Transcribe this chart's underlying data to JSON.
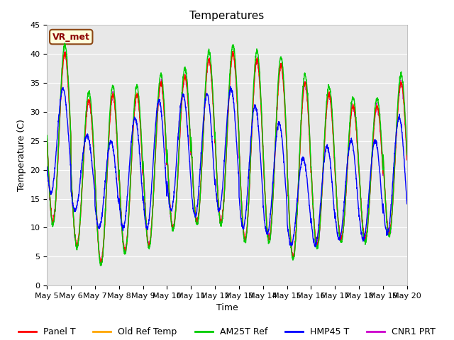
{
  "title": "Temperatures",
  "xlabel": "Time",
  "ylabel": "Temperature (C)",
  "ylim": [
    0,
    45
  ],
  "n_days": 15,
  "background_color": "#e8e8e8",
  "plot_bg_color": "#e8e8e8",
  "grid_color": "white",
  "annotation_text": "VR_met",
  "annotation_bg": "#ffffdd",
  "annotation_border": "#8b4513",
  "series": [
    {
      "label": "Panel T",
      "color": "#ff0000"
    },
    {
      "label": "Old Ref Temp",
      "color": "#ffa500"
    },
    {
      "label": "AM25T Ref",
      "color": "#00cc00"
    },
    {
      "label": "HMP45 T",
      "color": "#0000ff"
    },
    {
      "label": "CNR1 PRT",
      "color": "#cc00cc"
    }
  ],
  "tick_labels": [
    "May 5",
    "May 6",
    "May 7",
    "May 8",
    "May 9",
    "May 10",
    "May 11",
    "May 12",
    "May 13",
    "May 14",
    "May 15",
    "May 16",
    "May 17",
    "May 18",
    "May 19",
    "May 20"
  ],
  "yticks": [
    0,
    5,
    10,
    15,
    20,
    25,
    30,
    35,
    40,
    45
  ],
  "title_fontsize": 11,
  "axis_label_fontsize": 9,
  "tick_fontsize": 8,
  "legend_fontsize": 9,
  "linewidth": 1.0,
  "day_maxima": [
    40,
    32,
    33,
    33,
    35,
    36,
    39,
    40,
    39,
    38,
    35,
    33,
    31,
    31,
    35
  ],
  "day_minima": [
    11,
    7,
    4,
    6,
    7,
    10,
    11,
    11,
    8,
    8,
    5,
    7,
    8,
    8,
    9
  ],
  "hmp45_maxima": [
    34,
    26,
    25,
    29,
    32,
    33,
    33,
    34,
    31,
    28,
    22,
    24,
    25,
    25,
    29
  ],
  "hmp45_minima": [
    16,
    13,
    10,
    10,
    10,
    13,
    12,
    13,
    10,
    9,
    7,
    7,
    8,
    8,
    9
  ]
}
